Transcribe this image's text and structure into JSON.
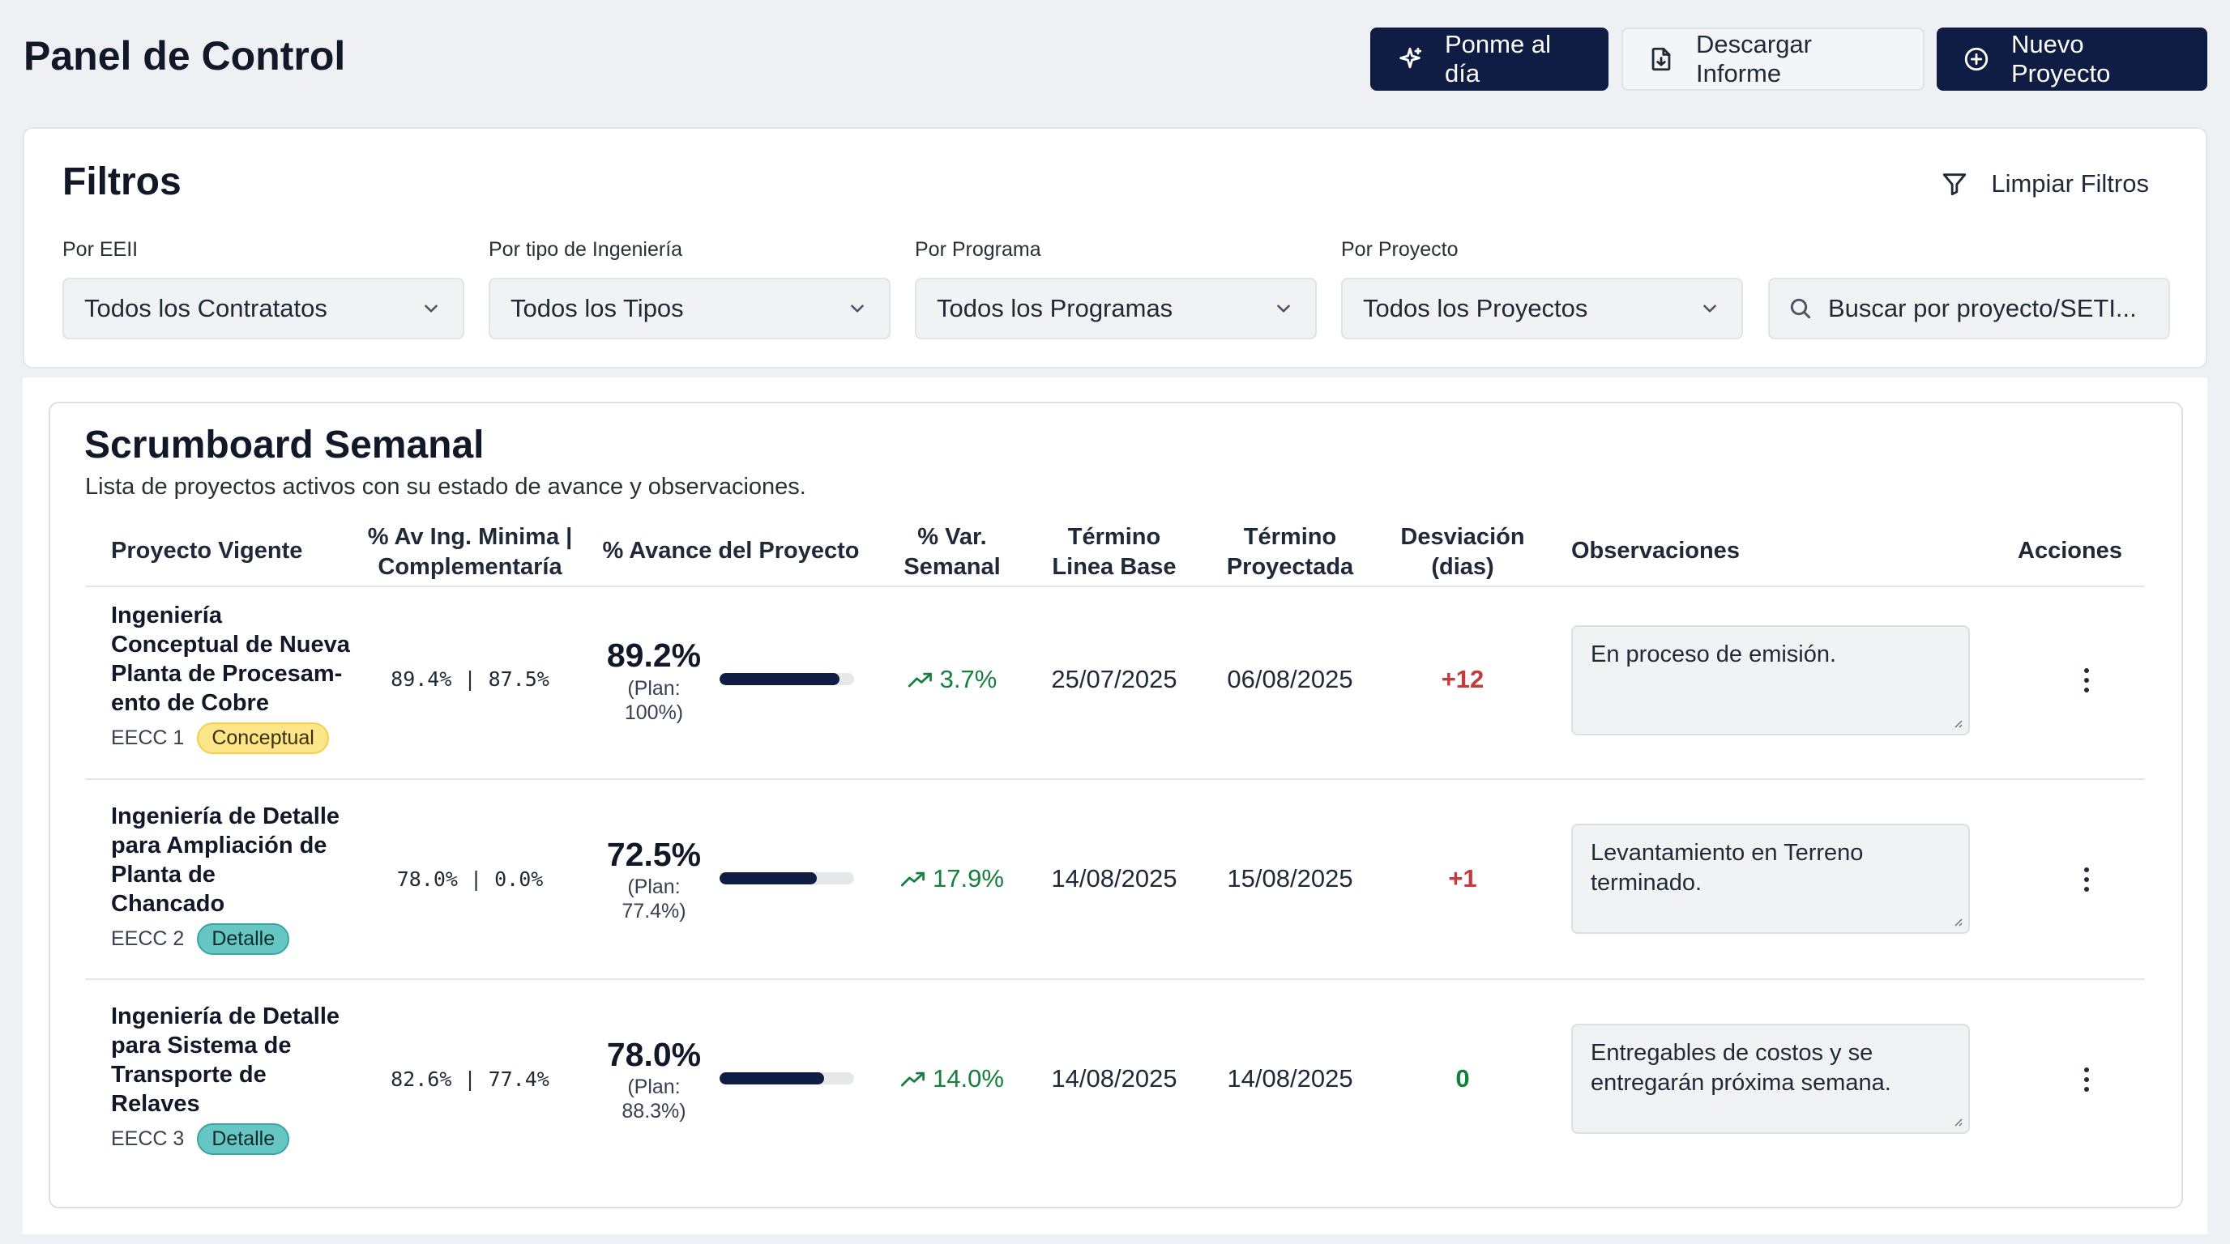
{
  "header": {
    "title": "Panel de Control",
    "buttons": {
      "update": "Ponme al día",
      "download": "Descargar Informe",
      "new_project": "Nuevo Proyecto"
    }
  },
  "filters": {
    "title": "Filtros",
    "clear": "Limpiar Filtros",
    "eeii": {
      "label": "Por EEII",
      "value": "Todos los Contratatos"
    },
    "engineering": {
      "label": "Por tipo de Ingeniería",
      "value": "Todos los Tipos"
    },
    "program": {
      "label": "Por Programa",
      "value": "Todos los Programas"
    },
    "project": {
      "label": "Por Proyecto",
      "value": "Todos los Proyectos"
    },
    "search_placeholder": "Buscar por proyecto/SETI..."
  },
  "board": {
    "title": "Scrumboard Semanal",
    "subtitle": "Lista de proyectos activos con su estado de avance y observaciones.",
    "columns": {
      "project": "Proyecto Vigente",
      "min_line1": "% Av Ing. Minima |",
      "min_line2": "Complementaría",
      "progress": "% Avance del Proyecto",
      "var_line1": "% Var.",
      "var_line2": "Semanal",
      "base_line1": "Término",
      "base_line2": "Linea Base",
      "proj_line1": "Término",
      "proj_line2": "Proyectada",
      "dev_line1": "Desviación",
      "dev_line2": "(dias)",
      "observations": "Observaciones",
      "actions": "Acciones"
    },
    "rows": [
      {
        "name_lines": [
          "Ingeniería",
          "Conceptual de Nueva",
          "Planta de Procesam-",
          "ento de Cobre"
        ],
        "eecc": "EECC 1",
        "badge": "Conceptual",
        "badge_color": "#fde58a",
        "minima": "89.4%  |  87.5%",
        "progress": "89.2%",
        "progress_fraction": 0.892,
        "plan_line1": "(Plan:",
        "plan_line2": "100%)",
        "var": "3.7%",
        "base_end": "25/07/2025",
        "projected_end": "06/08/2025",
        "deviation": "+12",
        "observation": "En proceso de emisión."
      },
      {
        "name_lines": [
          "Ingeniería de Detalle",
          "para Ampliación de",
          "Planta de",
          "Chancado"
        ],
        "eecc": "EECC 2",
        "badge": "Detalle",
        "badge_color": "#66c6c4",
        "minima": "78.0%  |  0.0%",
        "progress": "72.5%",
        "progress_fraction": 0.725,
        "plan_line1": "(Plan:",
        "plan_line2": "77.4%)",
        "var": "17.9%",
        "base_end": "14/08/2025",
        "projected_end": "15/08/2025",
        "deviation": "+1",
        "observation": "Levantamiento en Terreno terminado."
      },
      {
        "name_lines": [
          "Ingeniería de Detalle",
          "para Sistema de",
          "Transporte de",
          "Relaves"
        ],
        "eecc": "EECC 3",
        "badge": "Detalle",
        "badge_color": "#66c6c4",
        "minima": "82.6%  |  77.4%",
        "progress": "78.0%",
        "progress_fraction": 0.78,
        "plan_line1": "(Plan:",
        "plan_line2": "88.3%)",
        "var": "14.0%",
        "base_end": "14/08/2025",
        "projected_end": "14/08/2025",
        "deviation": "0",
        "observation": "Entregables de costos y se entregarán próxima semana."
      }
    ]
  },
  "colors": {
    "primary": "#0f1d45",
    "positive": "#15803d",
    "negative": "#c53b3b",
    "badge_conceptual": "#fde58a",
    "badge_detalle": "#66c6c4"
  },
  "icons": [
    "sparkle-icon",
    "download-file-icon",
    "plus-circle-icon",
    "filter-icon",
    "chevron-down-icon",
    "search-icon",
    "trend-up-icon",
    "kebab-menu-icon"
  ]
}
